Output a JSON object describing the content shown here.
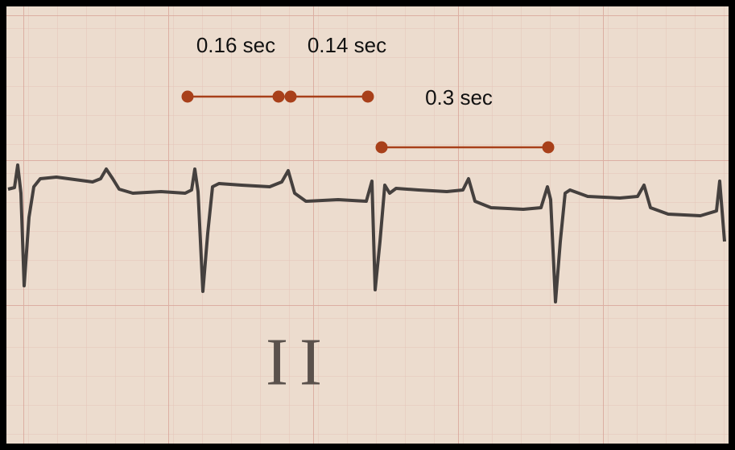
{
  "annotations": [
    {
      "label": "0.16 sec"
    },
    {
      "label": "0.14 sec"
    },
    {
      "label": "0.3 sec"
    }
  ],
  "lead_label": "II"
}
